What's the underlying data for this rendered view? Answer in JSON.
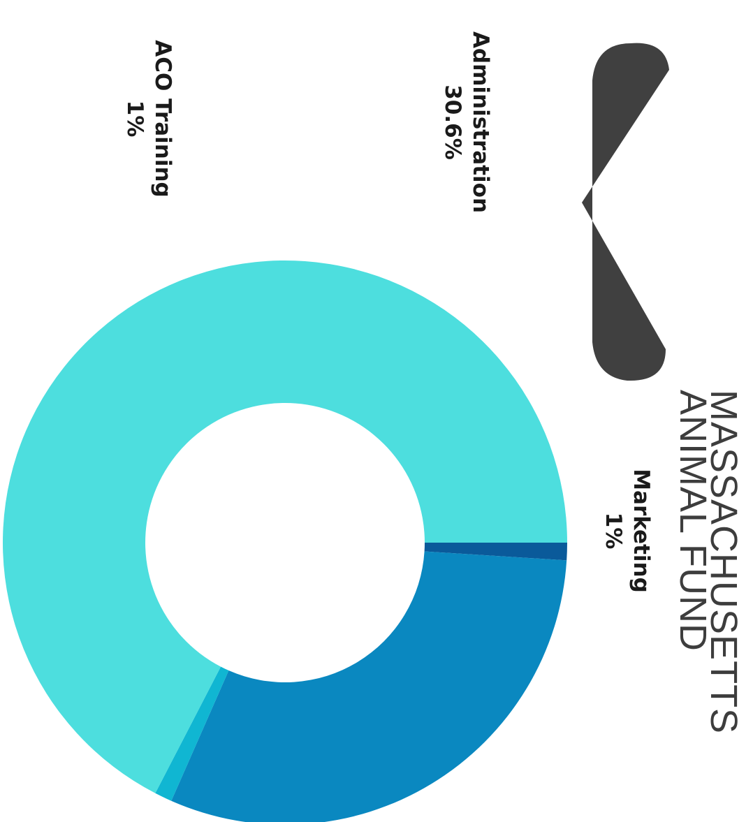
{
  "logo": {
    "line1": "MASSACHUSETTS",
    "line2": "ANIMAL FUND",
    "shape_color": "#404040",
    "text_color": "#3d3d3d"
  },
  "chart_data": {
    "type": "pie",
    "style": "donut",
    "slices": [
      {
        "label": "Marketing",
        "value": 1,
        "display": "1%",
        "color": "#0a5a9a"
      },
      {
        "label": "Administration",
        "value": 30.6,
        "display": "30.6%",
        "color": "#0a88c0"
      },
      {
        "label": "ACO Training",
        "value": 1,
        "display": "1%",
        "color": "#10b6d2"
      },
      {
        "label": "",
        "value": 67.4,
        "display": "",
        "color": "#4ddede"
      }
    ]
  }
}
